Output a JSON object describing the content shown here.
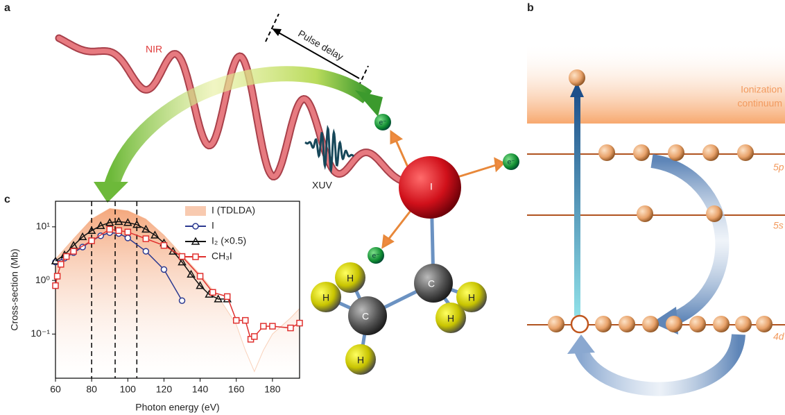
{
  "panel_a": {
    "label": "a",
    "nir": "NIR",
    "pulse_delay": "Pulse delay",
    "xuv": "XUV",
    "iodine": "I",
    "carbons": [
      "C",
      "C"
    ],
    "hydrogens": [
      "H",
      "H",
      "H",
      "H",
      "H"
    ],
    "electrons": [
      "e⁻",
      "e⁻",
      "e⁻"
    ]
  },
  "panel_b": {
    "label": "b",
    "continuum": [
      "Ionization",
      "continuum"
    ],
    "levels": [
      "5p",
      "5s",
      "4d"
    ]
  },
  "chart_data": {
    "type": "line",
    "label": "c",
    "xlabel": "Photon energy (eV)",
    "ylabel": "Cross-section (Mb)",
    "xlim": [
      60,
      195
    ],
    "ylim": [
      0.015,
      30
    ],
    "yscale": "log",
    "xticks": [
      60,
      80,
      100,
      120,
      140,
      160,
      180
    ],
    "yticks": [
      {
        "value": 10,
        "label": "10¹"
      },
      {
        "value": 1,
        "label": "10⁰"
      },
      {
        "value": 0.1,
        "label": "10⁻¹"
      }
    ],
    "vlines": [
      80,
      93,
      105
    ],
    "legend": "upper right",
    "series": [
      {
        "name": "I (TDLDA)",
        "color": "#f4a77c",
        "kind": "area",
        "x": [
          60,
          70,
          80,
          90,
          100,
          110,
          120,
          130,
          140,
          150,
          160,
          165,
          170,
          175,
          180,
          190,
          195
        ],
        "values": [
          2.5,
          6,
          14,
          22,
          20,
          14,
          7,
          3,
          1.3,
          0.5,
          0.15,
          0.05,
          0.02,
          0.05,
          0.1,
          0.2,
          0.3
        ]
      },
      {
        "name": "I",
        "color": "#2b3990",
        "kind": "circle",
        "x": [
          60,
          65,
          70,
          75,
          80,
          85,
          90,
          95,
          100,
          110,
          120,
          130
        ],
        "values": [
          2.2,
          2.6,
          3.3,
          4.2,
          5.5,
          6.8,
          7.8,
          7.5,
          6.2,
          3.5,
          1.6,
          0.42
        ]
      },
      {
        "name": "I₂ (×0.5)",
        "color": "#111111",
        "kind": "triangle",
        "x": [
          60,
          65,
          70,
          75,
          80,
          85,
          90,
          95,
          100,
          105,
          110,
          115,
          120,
          125,
          130,
          135,
          140,
          145,
          150,
          155
        ],
        "values": [
          2.3,
          3,
          4.5,
          6.5,
          8.5,
          10.5,
          12,
          12.5,
          12,
          11,
          9,
          7,
          5,
          3.5,
          2.2,
          1.3,
          0.8,
          0.55,
          0.45,
          0.45
        ]
      },
      {
        "name": "CH₃I",
        "color": "#e0312f",
        "kind": "square",
        "x": [
          60,
          61,
          63,
          66,
          70,
          80,
          90,
          95,
          100,
          110,
          120,
          130,
          140,
          147,
          155,
          160,
          165,
          168,
          170,
          175,
          180,
          190,
          195
        ],
        "values": [
          0.8,
          1.2,
          2,
          2.8,
          3.5,
          5.5,
          9,
          8.5,
          8,
          6,
          4.5,
          2.8,
          1.2,
          0.6,
          0.5,
          0.18,
          0.18,
          0.08,
          0.09,
          0.14,
          0.14,
          0.13,
          0.16
        ]
      }
    ]
  }
}
